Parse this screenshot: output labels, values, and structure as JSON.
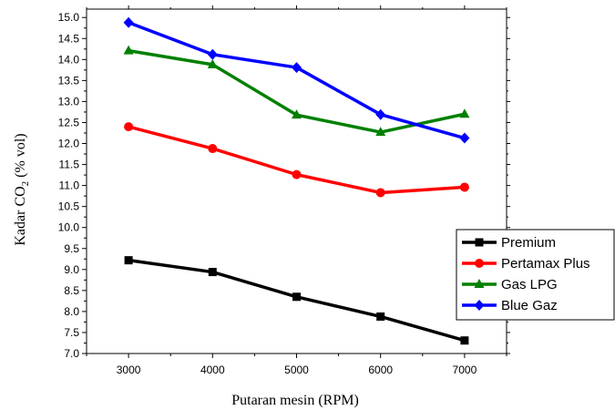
{
  "chart_data": {
    "type": "line",
    "xlabel": "Putaran mesin (RPM)",
    "ylabel": {
      "pre": "Kadar CO",
      "sub": "2",
      "post": " (% vol)"
    },
    "x": [
      3000,
      4000,
      5000,
      6000,
      7000
    ],
    "x_ticks": [
      "3000",
      "4000",
      "5000",
      "6000",
      "7000"
    ],
    "xlim": [
      2500,
      7500
    ],
    "ylim": [
      7.0,
      15.2
    ],
    "y_ticks": [
      "7.0",
      "7.5",
      "8.0",
      "8.5",
      "9.0",
      "9.5",
      "10.0",
      "10.5",
      "11.0",
      "11.5",
      "12.0",
      "12.5",
      "13.0",
      "13.5",
      "14.0",
      "14.5",
      "15.0"
    ],
    "grid": false,
    "legend_position": "right",
    "series": [
      {
        "name": "Premium",
        "color": "#000000",
        "marker": "square",
        "values": [
          9.22,
          8.94,
          8.35,
          7.88,
          7.31
        ]
      },
      {
        "name": "Pertamax Plus",
        "color": "#ff0000",
        "marker": "circle",
        "values": [
          12.4,
          11.88,
          11.26,
          10.83,
          10.96
        ]
      },
      {
        "name": "Gas LPG",
        "color": "#008000",
        "marker": "triangle",
        "values": [
          14.21,
          13.88,
          12.68,
          12.27,
          12.7
        ]
      },
      {
        "name": "Blue Gaz",
        "color": "#0000ff",
        "marker": "diamond",
        "values": [
          14.88,
          14.12,
          13.81,
          12.69,
          12.13
        ]
      }
    ]
  }
}
